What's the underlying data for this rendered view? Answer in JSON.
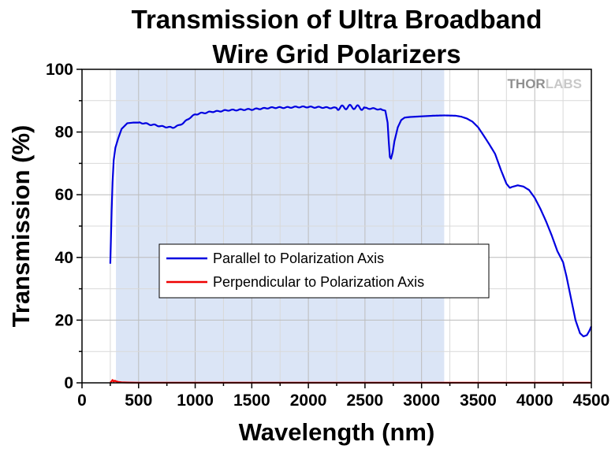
{
  "chart_data": {
    "type": "line",
    "title": [
      "Transmission of Ultra Broadband",
      "Wire Grid Polarizers"
    ],
    "xlabel": "Wavelength (nm)",
    "ylabel": "Transmission (%)",
    "xlim": [
      0,
      4500
    ],
    "ylim": [
      0,
      100
    ],
    "xticks": [
      0,
      500,
      1000,
      1500,
      2000,
      2500,
      3000,
      3500,
      4000,
      4500
    ],
    "yticks": [
      0,
      20,
      40,
      60,
      80,
      100
    ],
    "grid": true,
    "legend_position": "center-left",
    "watermark": {
      "part1": "THOR",
      "part2": "LABS"
    },
    "highlight_band": {
      "x": [
        300,
        3200
      ],
      "color": "#dbe5f6"
    },
    "series": [
      {
        "name": "Parallel to Polarization Axis",
        "color": "#0000e0",
        "points": [
          [
            250,
            38
          ],
          [
            255,
            45
          ],
          [
            262,
            55
          ],
          [
            270,
            64
          ],
          [
            280,
            71
          ],
          [
            295,
            75
          ],
          [
            320,
            78
          ],
          [
            350,
            81
          ],
          [
            400,
            82.8
          ],
          [
            450,
            83
          ],
          [
            500,
            83
          ],
          [
            550,
            82.8
          ],
          [
            600,
            82.4
          ],
          [
            650,
            82.2
          ],
          [
            700,
            81.8
          ],
          [
            750,
            81.6
          ],
          [
            800,
            81.4
          ],
          [
            850,
            82
          ],
          [
            900,
            83
          ],
          [
            950,
            84.5
          ],
          [
            1000,
            85.6
          ],
          [
            1050,
            86
          ],
          [
            1100,
            86.2
          ],
          [
            1150,
            86.5
          ],
          [
            1200,
            86.6
          ],
          [
            1250,
            86.8
          ],
          [
            1300,
            87
          ],
          [
            1350,
            87
          ],
          [
            1400,
            87.1
          ],
          [
            1450,
            87.2
          ],
          [
            1500,
            87.2
          ],
          [
            1550,
            87.4
          ],
          [
            1600,
            87.5
          ],
          [
            1650,
            87.7
          ],
          [
            1700,
            87.8
          ],
          [
            1750,
            87.8
          ],
          [
            1800,
            87.8
          ],
          [
            1850,
            87.9
          ],
          [
            1900,
            88
          ],
          [
            1950,
            88
          ],
          [
            2000,
            88
          ],
          [
            2050,
            87.9
          ],
          [
            2100,
            87.9
          ],
          [
            2150,
            87.8
          ],
          [
            2200,
            87.7
          ],
          [
            2250,
            87.7
          ],
          [
            2300,
            87.8
          ],
          [
            2350,
            88
          ],
          [
            2400,
            88
          ],
          [
            2450,
            87.8
          ],
          [
            2500,
            87.6
          ],
          [
            2550,
            87.5
          ],
          [
            2600,
            87.4
          ],
          [
            2650,
            87.1
          ],
          [
            2680,
            86.8
          ],
          [
            2700,
            83
          ],
          [
            2710,
            77
          ],
          [
            2720,
            72
          ],
          [
            2730,
            71.5
          ],
          [
            2745,
            73.5
          ],
          [
            2760,
            77
          ],
          [
            2790,
            81.5
          ],
          [
            2820,
            83.8
          ],
          [
            2850,
            84.6
          ],
          [
            2900,
            84.8
          ],
          [
            2950,
            84.9
          ],
          [
            3000,
            85
          ],
          [
            3050,
            85.1
          ],
          [
            3100,
            85.2
          ],
          [
            3200,
            85.3
          ],
          [
            3300,
            85.2
          ],
          [
            3350,
            84.9
          ],
          [
            3400,
            84.3
          ],
          [
            3450,
            83.3
          ],
          [
            3500,
            81.5
          ],
          [
            3550,
            78.8
          ],
          [
            3600,
            76
          ],
          [
            3650,
            73
          ],
          [
            3700,
            68
          ],
          [
            3750,
            63.5
          ],
          [
            3780,
            62.2
          ],
          [
            3800,
            62.5
          ],
          [
            3850,
            63
          ],
          [
            3900,
            62.6
          ],
          [
            3950,
            61.5
          ],
          [
            4000,
            59
          ],
          [
            4050,
            55.5
          ],
          [
            4100,
            51.5
          ],
          [
            4150,
            47
          ],
          [
            4200,
            42
          ],
          [
            4250,
            38.5
          ],
          [
            4280,
            34
          ],
          [
            4320,
            27
          ],
          [
            4360,
            20
          ],
          [
            4400,
            15.8
          ],
          [
            4430,
            14.8
          ],
          [
            4460,
            15.2
          ],
          [
            4480,
            16.4
          ],
          [
            4500,
            18
          ]
        ]
      },
      {
        "name": "Perpendicular to Polarization Axis",
        "color": "#ee0000",
        "points": [
          [
            250,
            0.1
          ],
          [
            260,
            0.4
          ],
          [
            270,
            0.9
          ],
          [
            280,
            0.4
          ],
          [
            290,
            0.7
          ],
          [
            300,
            0.5
          ],
          [
            320,
            0.3
          ],
          [
            350,
            0.15
          ],
          [
            400,
            0.1
          ],
          [
            500,
            0.05
          ],
          [
            1000,
            0.05
          ],
          [
            2000,
            0.05
          ],
          [
            3000,
            0.05
          ],
          [
            4000,
            0.05
          ],
          [
            4500,
            0.05
          ]
        ]
      }
    ]
  }
}
